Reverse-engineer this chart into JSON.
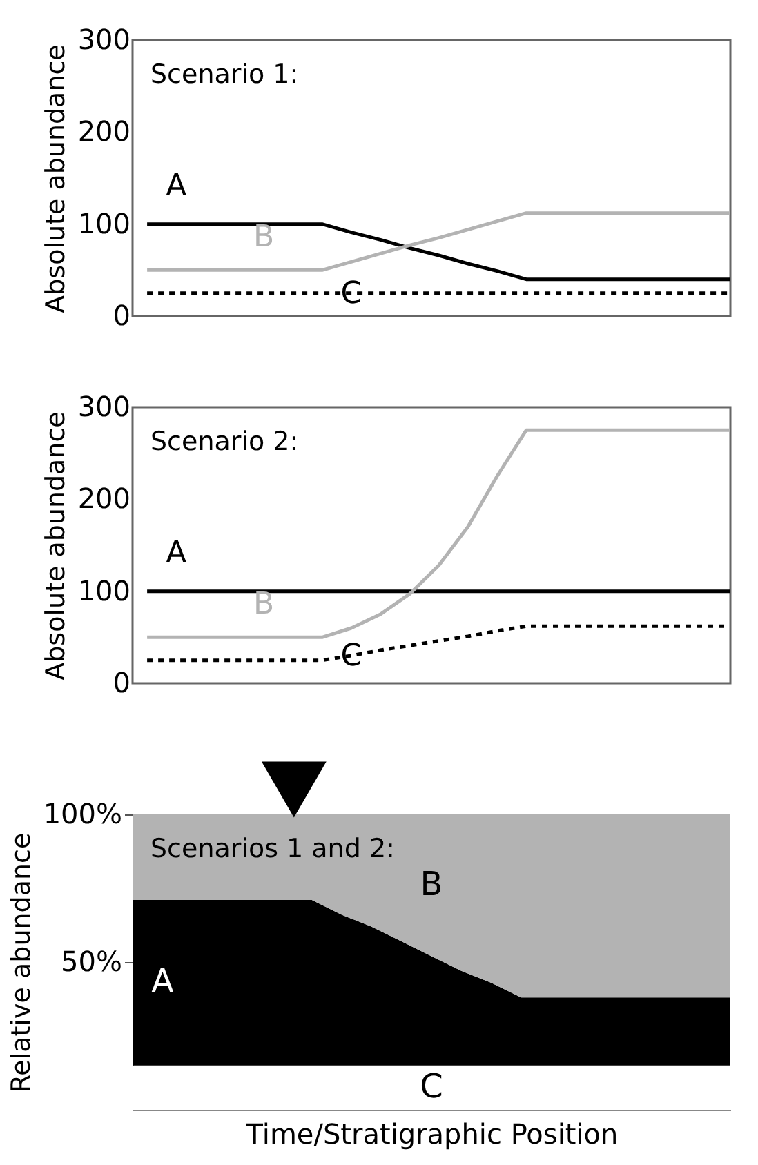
{
  "chart_data": [
    {
      "type": "line",
      "ylabel": "Absolute abundance",
      "annotations": [
        "Scenario 1:"
      ],
      "categories": [
        null,
        null,
        null,
        null,
        null,
        null,
        null,
        null,
        null,
        null,
        null,
        null,
        null,
        null,
        null,
        null,
        null,
        null,
        null,
        null,
        null
      ],
      "ylim": [
        0,
        300
      ],
      "yticks": [
        0,
        100,
        200,
        300
      ],
      "grid": false,
      "legend": false,
      "tick_labels": "y",
      "series": [
        {
          "name": "A",
          "color": "#000000",
          "values": [
            100,
            100,
            100,
            100,
            100,
            100,
            100,
            91,
            83,
            74,
            66,
            57,
            49,
            40,
            40,
            40,
            40,
            40,
            40,
            40,
            40
          ]
        },
        {
          "name": "B",
          "color": "#b3b3b3",
          "values": [
            50,
            50,
            50,
            50,
            50,
            50,
            50,
            59,
            68,
            77,
            85,
            94,
            103,
            112,
            112,
            112,
            112,
            112,
            112,
            112,
            112
          ]
        },
        {
          "name": "C",
          "color": "#000000",
          "line_style": "dashed",
          "values": [
            25,
            25,
            25,
            25,
            25,
            25,
            25,
            25,
            25,
            25,
            25,
            25,
            25,
            25,
            25,
            25,
            25,
            25,
            25,
            25,
            25
          ]
        }
      ]
    },
    {
      "type": "line",
      "ylabel": "Absolute abundance",
      "annotations": [
        "Scenario 2:"
      ],
      "categories": [
        null,
        null,
        null,
        null,
        null,
        null,
        null,
        null,
        null,
        null,
        null,
        null,
        null,
        null,
        null,
        null,
        null,
        null,
        null,
        null,
        null
      ],
      "ylim": [
        0,
        300
      ],
      "yticks": [
        0,
        100,
        200,
        300
      ],
      "grid": false,
      "legend": false,
      "tick_labels": "y",
      "series": [
        {
          "name": "A",
          "color": "#000000",
          "values": [
            100,
            100,
            100,
            100,
            100,
            100,
            100,
            100,
            100,
            100,
            100,
            100,
            100,
            100,
            100,
            100,
            100,
            100,
            100,
            100,
            100
          ]
        },
        {
          "name": "B",
          "color": "#b3b3b3",
          "values": [
            50,
            50,
            50,
            50,
            50,
            50,
            50,
            60,
            75,
            97,
            128,
            170,
            225,
            275,
            275,
            275,
            275,
            275,
            275,
            275,
            275
          ]
        },
        {
          "name": "C",
          "color": "#000000",
          "line_style": "dashed",
          "values": [
            25,
            25,
            25,
            25,
            25,
            25,
            25,
            30,
            36,
            41,
            46,
            51,
            57,
            62,
            62,
            62,
            62,
            62,
            62,
            62,
            62
          ]
        }
      ]
    },
    {
      "type": "area",
      "stacked": true,
      "xlabel": "Time/Stratigraphic Position",
      "ylabel": "Relative abundance",
      "annotations": [
        "Scenarios 1 and 2:"
      ],
      "categories": [
        null,
        null,
        null,
        null,
        null,
        null,
        null,
        null,
        null,
        null,
        null,
        null,
        null,
        null,
        null,
        null,
        null,
        null,
        null,
        null,
        null
      ],
      "ylim": [
        0,
        100
      ],
      "yticks": [
        {
          "value": 50,
          "label": "50%"
        },
        {
          "value": 100,
          "label": "100%"
        }
      ],
      "grid": false,
      "legend": false,
      "tick_labels": "y",
      "series": [
        {
          "name": "C",
          "color": "#ffffff",
          "values": [
            15,
            15,
            15,
            15,
            15,
            15,
            15,
            15,
            15,
            15,
            15,
            15,
            15,
            15,
            15,
            15,
            15,
            15,
            15,
            15,
            15
          ]
        },
        {
          "name": "A",
          "color": "#000000",
          "values": [
            56,
            56,
            56,
            56,
            56,
            56,
            56,
            51,
            47,
            42,
            37,
            32,
            28,
            23,
            23,
            23,
            23,
            23,
            23,
            23,
            23
          ]
        },
        {
          "name": "B",
          "color": "#b3b3b3",
          "values": [
            29,
            29,
            29,
            29,
            29,
            29,
            29,
            34,
            38,
            43,
            48,
            53,
            57,
            62,
            62,
            62,
            62,
            62,
            62,
            62,
            62
          ]
        }
      ]
    }
  ]
}
